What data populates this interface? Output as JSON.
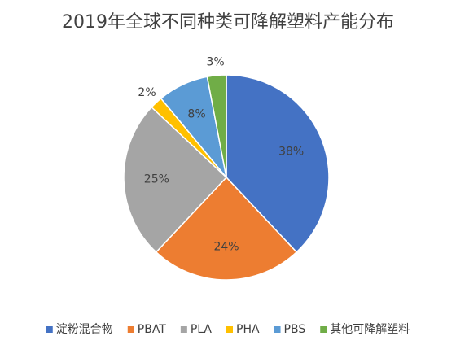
{
  "chart_data": {
    "type": "pie",
    "title": "2019年全球不同种类可降解塑料产能分布",
    "categories": [
      "淀粉混合物",
      "PBAT",
      "PLA",
      "PHA",
      "PBS",
      "其他可降解塑料"
    ],
    "values": [
      38,
      24,
      25,
      2,
      8,
      3
    ],
    "value_labels": [
      "38%",
      "24%",
      "25%",
      "2%",
      "8%",
      "3%"
    ],
    "colors": [
      "#4472c4",
      "#ed7d31",
      "#a5a5a5",
      "#ffc000",
      "#5b9bd5",
      "#70ad47"
    ],
    "legend": "bottom"
  }
}
